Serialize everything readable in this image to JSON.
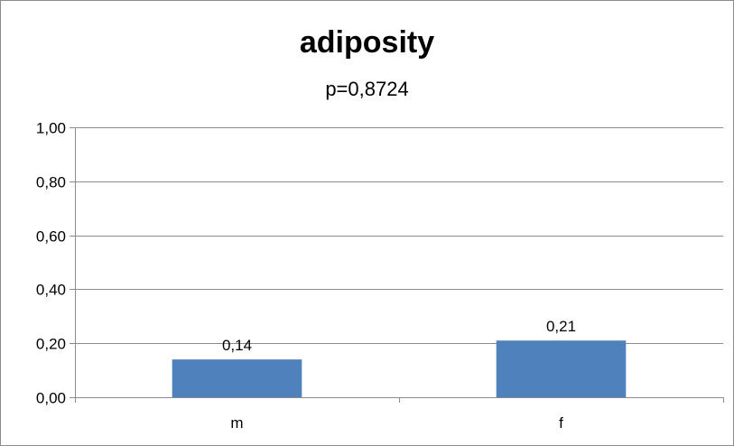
{
  "chart_data": {
    "type": "bar",
    "title": "adiposity",
    "subtitle": "p=0,8724",
    "categories": [
      "m",
      "f"
    ],
    "values": [
      0.14,
      0.21
    ],
    "data_labels": [
      "0,14",
      "0,21"
    ],
    "yticks": [
      0,
      0.2,
      0.4,
      0.6,
      0.8,
      1.0
    ],
    "ytick_labels": [
      "0,00",
      "0,20",
      "0,40",
      "0,60",
      "0,80",
      "1,00"
    ],
    "ylim": [
      0,
      1
    ],
    "grid": true,
    "legend": "none",
    "colors": {
      "bar": "#4f81bd",
      "grid": "#8c8c8c",
      "axis": "#8c8c8c"
    }
  }
}
